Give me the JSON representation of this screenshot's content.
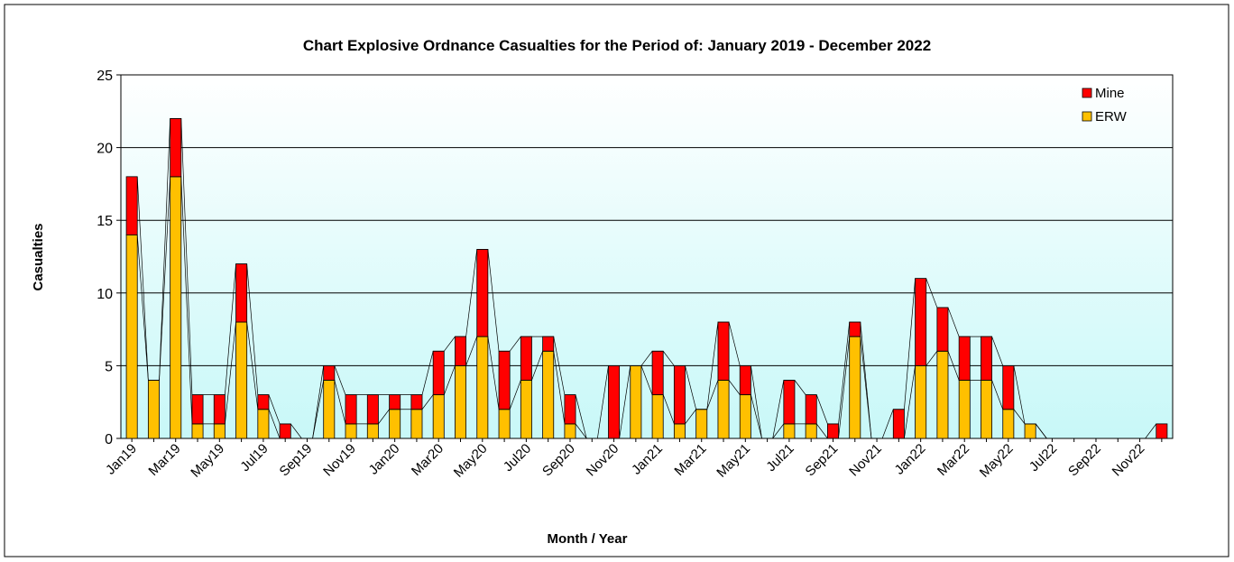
{
  "chart_data": {
    "type": "stacked_bar",
    "title": "Chart Explosive Ordnance Casualties for the Period of: January 2019 - December 2022",
    "x_label": "Month / Year",
    "y_label": "Casualties",
    "categories": [
      "Jan19",
      null,
      "Mar19",
      null,
      "May19",
      null,
      "Jul19",
      null,
      "Sep19",
      null,
      "Nov19",
      null,
      "Jan20",
      null,
      "Mar20",
      null,
      "May20",
      null,
      "Jul20",
      null,
      "Sep20",
      null,
      "Nov20",
      null,
      "Jan21",
      null,
      "Mar21",
      null,
      "May21",
      null,
      "Jul21",
      null,
      "Sep21",
      null,
      "Nov21",
      null,
      "Jan22",
      null,
      "Mar22",
      null,
      "May22",
      null,
      "Jul22",
      null,
      "Sep22",
      null,
      "Nov22",
      null
    ],
    "series": [
      {
        "name": "ERW",
        "color": "#ffc000",
        "values": [
          14,
          4,
          18,
          1,
          1,
          8,
          2,
          0,
          0,
          4,
          1,
          1,
          2,
          2,
          3,
          5,
          7,
          2,
          4,
          6,
          1,
          0,
          0,
          5,
          3,
          1,
          2,
          4,
          3,
          0,
          1,
          1,
          0,
          7,
          0,
          0,
          5,
          6,
          4,
          4,
          2,
          1,
          0,
          0,
          0,
          0,
          0,
          0
        ]
      },
      {
        "name": "Mine",
        "color": "#ff0000",
        "values": [
          4,
          0,
          4,
          2,
          2,
          4,
          1,
          1,
          0,
          1,
          2,
          2,
          1,
          1,
          3,
          2,
          6,
          4,
          3,
          1,
          2,
          0,
          5,
          0,
          3,
          4,
          0,
          4,
          2,
          0,
          3,
          2,
          1,
          1,
          0,
          2,
          6,
          3,
          3,
          3,
          3,
          0,
          0,
          0,
          0,
          0,
          0,
          1
        ]
      }
    ],
    "ylim": [
      0,
      25
    ],
    "yticks": [
      0,
      5,
      10,
      15,
      20,
      25
    ],
    "grid": true,
    "legend": "upper right"
  }
}
